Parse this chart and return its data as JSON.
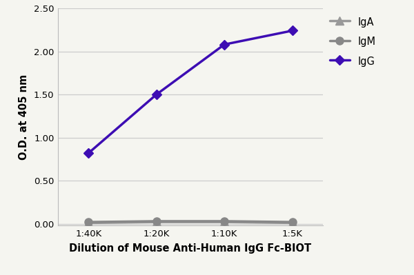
{
  "x_labels": [
    "1:40K",
    "1:20K",
    "1:10K",
    "1:5K"
  ],
  "x_values": [
    1,
    2,
    3,
    4
  ],
  "IgG_values": [
    0.82,
    1.5,
    2.08,
    2.24
  ],
  "IgM_values": [
    0.02,
    0.03,
    0.03,
    0.02
  ],
  "IgA_values": [
    0.01,
    0.02,
    0.02,
    0.01
  ],
  "IgG_color": "#3d0db3",
  "IgM_color": "#888888",
  "IgA_color": "#999999",
  "ylabel": "O.D. at 405 nm",
  "xlabel": "Dilution of Mouse Anti-Human IgG Fc-BIOT",
  "ylim": [
    -0.02,
    2.5
  ],
  "yticks": [
    0.0,
    0.5,
    1.0,
    1.5,
    2.0,
    2.5
  ],
  "ytick_labels": [
    "0.00",
    "0.50",
    "1.00",
    "1.50",
    "2.00",
    "2.50"
  ],
  "line_width": 2.5,
  "IgG_marker": "D",
  "IgM_marker": "o",
  "IgA_marker": "^",
  "IgG_markersize": 7,
  "IgM_markersize": 8,
  "IgA_markersize": 8,
  "legend_IgG": "IgG",
  "legend_IgM": "IgM",
  "legend_IgA": "IgA",
  "background_color": "#f5f5f0",
  "plot_bg_color": "#f5f5f0",
  "grid_color": "#cccccc",
  "spine_color": "#bbbbbb"
}
